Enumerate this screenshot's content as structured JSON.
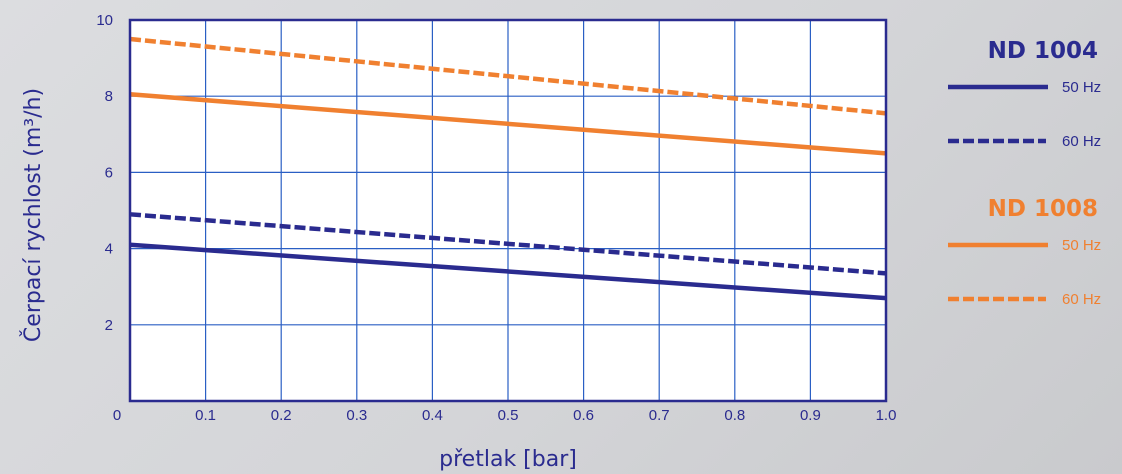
{
  "chart_data": {
    "type": "line",
    "xlabel": "přetlak [bar]",
    "ylabel": "Čerpací rychlost (m³/h)",
    "xlim": [
      0,
      1.0
    ],
    "ylim": [
      0,
      10
    ],
    "x_ticks": [
      "0",
      "0.1",
      "0.2",
      "0.3",
      "0.4",
      "0.5",
      "0.6",
      "0.7",
      "0.8",
      "0.9",
      "1.0"
    ],
    "y_ticks": [
      "2",
      "4",
      "6",
      "8",
      "10"
    ],
    "grid": true,
    "groups": [
      {
        "name": "ND 1004",
        "color": "#2a2b8f",
        "series": [
          {
            "name": "50 Hz",
            "style": "solid",
            "x": [
              0,
              1.0
            ],
            "y": [
              4.1,
              2.7
            ]
          },
          {
            "name": "60 Hz",
            "style": "dashed",
            "x": [
              0,
              1.0
            ],
            "y": [
              4.9,
              3.35
            ]
          }
        ]
      },
      {
        "name": "ND 1008",
        "color": "#f08030",
        "series": [
          {
            "name": "50 Hz",
            "style": "solid",
            "x": [
              0,
              1.0
            ],
            "y": [
              8.05,
              6.5
            ]
          },
          {
            "name": "60 Hz",
            "style": "dashed",
            "x": [
              0,
              1.0
            ],
            "y": [
              9.5,
              7.55
            ]
          }
        ]
      }
    ],
    "legend_position": "right"
  }
}
